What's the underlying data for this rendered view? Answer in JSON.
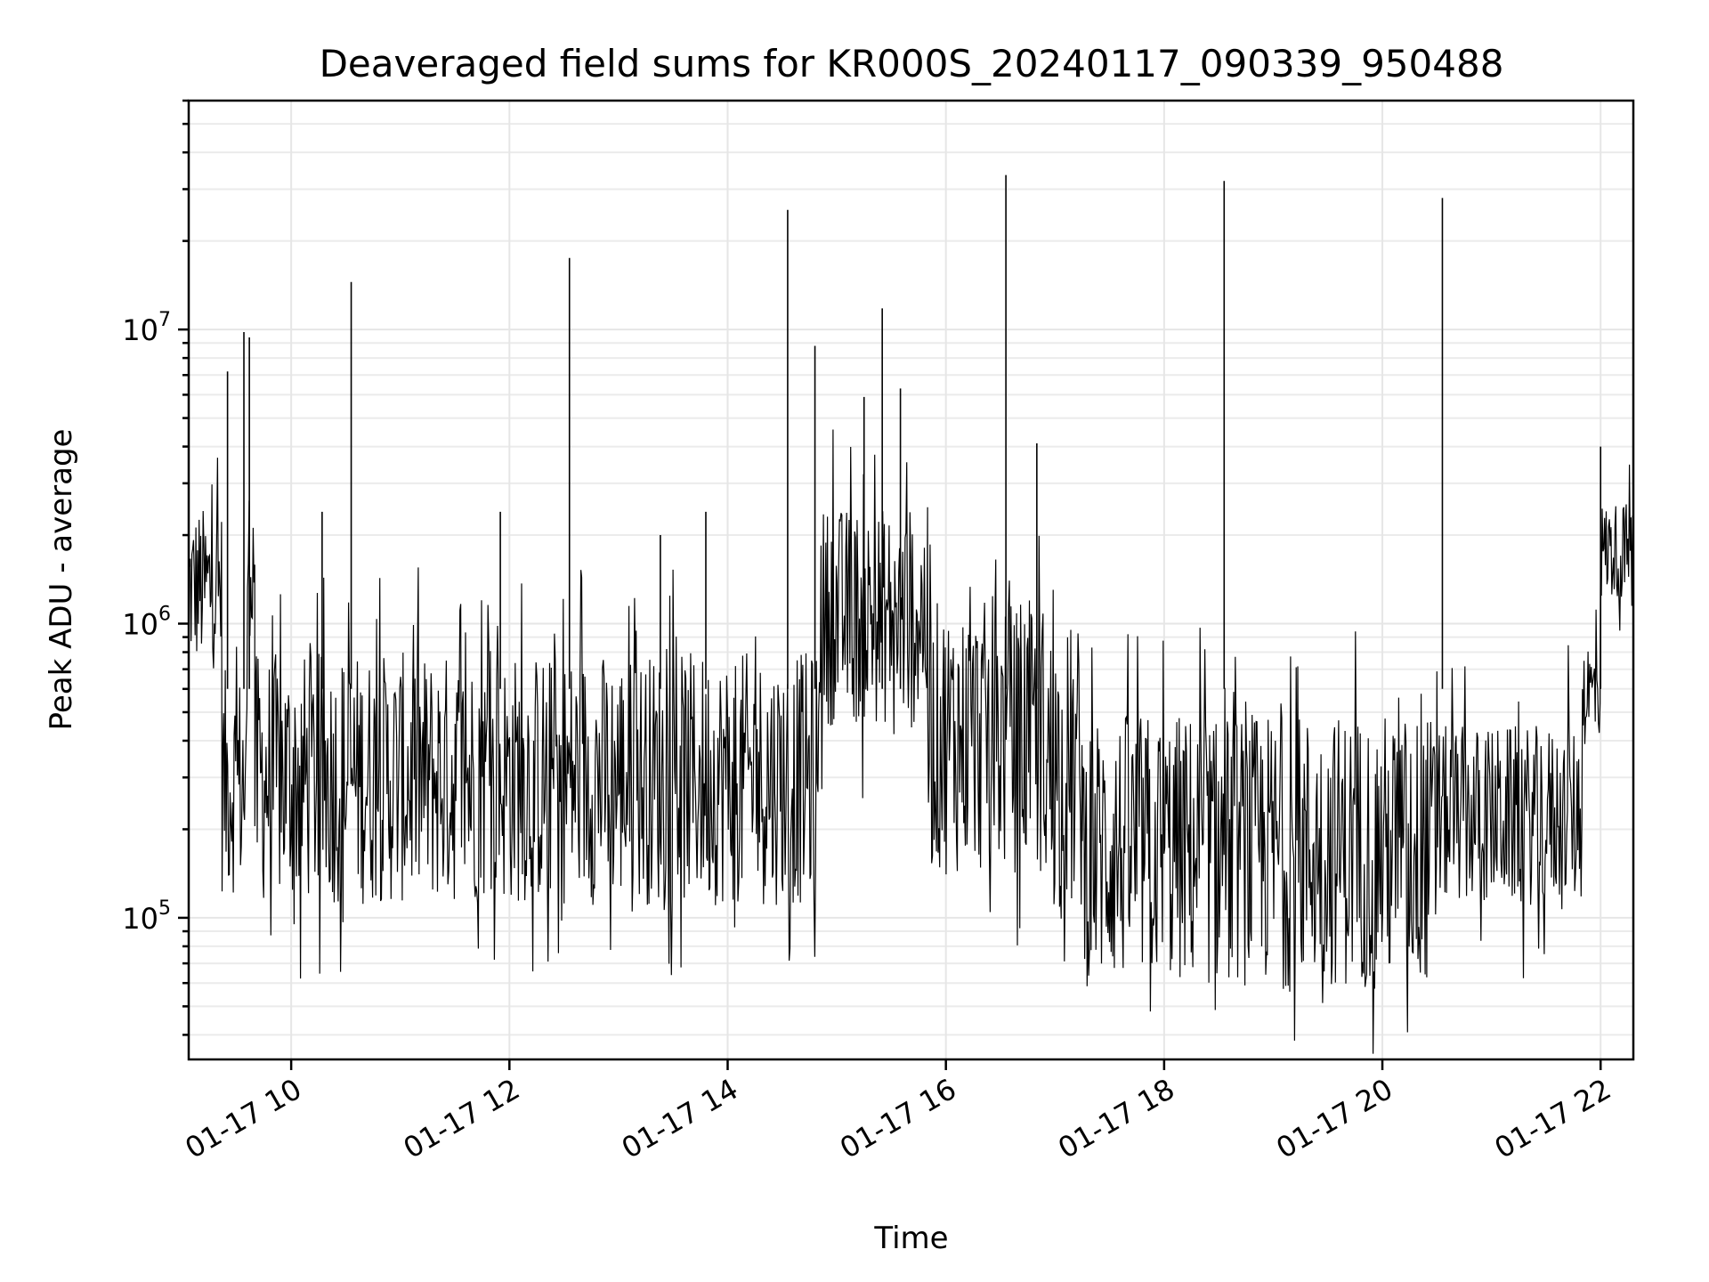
{
  "chart_data": {
    "type": "line",
    "title": "Deaveraged field sums for KR000S_20240117_090339_950488",
    "xlabel": "Time",
    "ylabel": "Peak ADU - average",
    "yscale": "log",
    "ylim": [
      33000,
      60000000
    ],
    "xlim": [
      "2024-01-17T09:03:39",
      "2024-01-17T22:18:00"
    ],
    "x_ticks": [
      {
        "value": "2024-01-17T10:00",
        "label": "01-17 10"
      },
      {
        "value": "2024-01-17T12:00",
        "label": "01-17 12"
      },
      {
        "value": "2024-01-17T14:00",
        "label": "01-17 14"
      },
      {
        "value": "2024-01-17T16:00",
        "label": "01-17 16"
      },
      {
        "value": "2024-01-17T18:00",
        "label": "01-17 18"
      },
      {
        "value": "2024-01-17T20:00",
        "label": "01-17 20"
      },
      {
        "value": "2024-01-17T22:00",
        "label": "01-17 22"
      }
    ],
    "y_ticks": [
      {
        "value": 100000,
        "base": "10",
        "exp": "5"
      },
      {
        "value": 1000000,
        "base": "10",
        "exp": "6"
      },
      {
        "value": 10000000,
        "base": "10",
        "exp": "7"
      }
    ],
    "grid": true,
    "line_color": "#000000",
    "series": [
      {
        "segments": [
          {
            "start": "2024-01-17T09:03:39",
            "end": "2024-01-17T09:22:00",
            "low": 700000,
            "high": 2500000
          },
          {
            "start": "2024-01-17T09:22:00",
            "end": "2024-01-17T09:36:00",
            "low": 120000,
            "high": 700000
          },
          {
            "start": "2024-01-17T09:36:00",
            "end": "2024-01-17T09:40:00",
            "low": 900000,
            "high": 3000000
          },
          {
            "start": "2024-01-17T09:40:00",
            "end": "2024-01-17T14:50:00",
            "low": 110000,
            "high": 800000
          },
          {
            "start": "2024-01-17T14:50:00",
            "end": "2024-01-17T15:50:00",
            "low": 450000,
            "high": 2500000
          },
          {
            "start": "2024-01-17T15:50:00",
            "end": "2024-01-17T16:55:00",
            "low": 140000,
            "high": 1200000
          },
          {
            "start": "2024-01-17T16:55:00",
            "end": "2024-01-17T17:15:00",
            "low": 100000,
            "high": 1000000
          },
          {
            "start": "2024-01-17T17:15:00",
            "end": "2024-01-17T20:30:00",
            "low": 58000,
            "high": 500000
          },
          {
            "start": "2024-01-17T20:30:00",
            "end": "2024-01-17T21:50:00",
            "low": 110000,
            "high": 450000
          },
          {
            "start": "2024-01-17T21:50:00",
            "end": "2024-01-17T22:00:00",
            "low": 380000,
            "high": 900000
          },
          {
            "start": "2024-01-17T22:00:00",
            "end": "2024-01-17T22:18:00",
            "low": 1200000,
            "high": 2600000
          }
        ],
        "spikes": [
          {
            "x": "2024-01-17T09:25:00",
            "y": 7200000
          },
          {
            "x": "2024-01-17T09:34:00",
            "y": 9800000
          },
          {
            "x": "2024-01-17T09:37:00",
            "y": 9400000
          },
          {
            "x": "2024-01-17T10:17:00",
            "y": 2400000
          },
          {
            "x": "2024-01-17T10:33:00",
            "y": 14500000
          },
          {
            "x": "2024-01-17T11:55:00",
            "y": 2400000
          },
          {
            "x": "2024-01-17T12:33:00",
            "y": 17500000
          },
          {
            "x": "2024-01-17T13:23:00",
            "y": 2000000
          },
          {
            "x": "2024-01-17T13:48:00",
            "y": 2400000
          },
          {
            "x": "2024-01-17T14:33:00",
            "y": 25500000
          },
          {
            "x": "2024-01-17T14:48:00",
            "y": 8800000
          },
          {
            "x": "2024-01-17T15:15:00",
            "y": 5900000
          },
          {
            "x": "2024-01-17T15:25:00",
            "y": 11800000
          },
          {
            "x": "2024-01-17T15:35:00",
            "y": 6300000
          },
          {
            "x": "2024-01-17T16:33:00",
            "y": 33500000
          },
          {
            "x": "2024-01-17T16:50:00",
            "y": 4100000
          },
          {
            "x": "2024-01-17T18:33:00",
            "y": 32000000
          },
          {
            "x": "2024-01-17T20:33:00",
            "y": 28000000
          },
          {
            "x": "2024-01-17T22:00:00",
            "y": 4000000
          }
        ]
      }
    ]
  }
}
